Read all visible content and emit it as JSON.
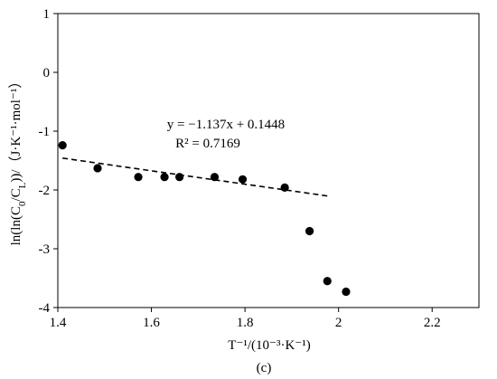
{
  "chart_data": {
    "type": "scatter",
    "x": [
      1.41,
      1.485,
      1.572,
      1.628,
      1.66,
      1.735,
      1.795,
      1.885,
      1.938,
      1.976,
      2.016
    ],
    "y": [
      -1.24,
      -1.63,
      -1.78,
      -1.78,
      -1.78,
      -1.78,
      -1.82,
      -1.96,
      -2.7,
      -3.55,
      -3.73
    ],
    "xlim": [
      1.4,
      2.3
    ],
    "ylim": [
      -4,
      1
    ],
    "xticks": [
      1.4,
      1.6,
      1.8,
      2.0,
      2.2
    ],
    "yticks": [
      1,
      0,
      -1,
      -2,
      -3,
      -4
    ],
    "xtick_labels": [
      "1.4",
      "1.6",
      "1.8",
      "2",
      "2.2"
    ],
    "ytick_labels": [
      "1",
      "0",
      "-1",
      "-2",
      "-3",
      "-4"
    ],
    "xlabel": "T⁻¹/(10⁻³·K⁻¹)",
    "ylabel_main": "ln(ln(C",
    "ylabel_sub1": "0",
    "ylabel_mid": "/C",
    "ylabel_sub2": "L",
    "ylabel_end": "))/（J·K⁻¹·mol⁻¹）",
    "trendline": {
      "slope": -1.137,
      "intercept": 0.1448,
      "x_range": [
        1.41,
        1.976
      ],
      "style": "dashed"
    },
    "equation_text": "y = −1.137x + 0.1448",
    "r2_text": "R² = 0.7169",
    "caption": "(c)",
    "grid": false,
    "marker_color": "#000000"
  }
}
